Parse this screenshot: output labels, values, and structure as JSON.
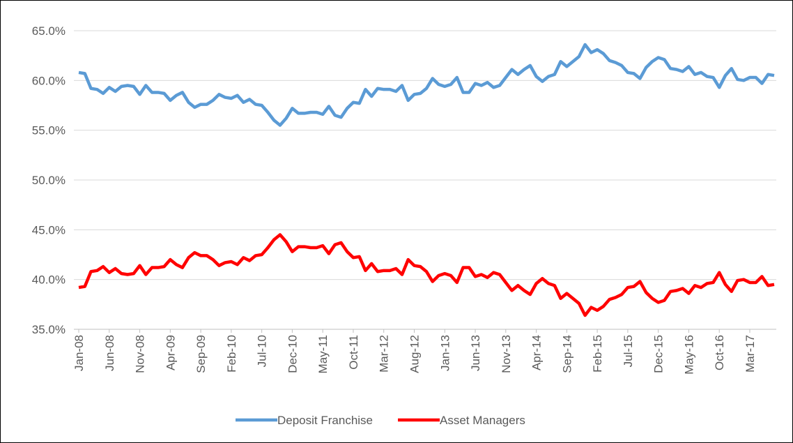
{
  "chart_data": {
    "type": "line",
    "categories": [
      "Jan-08",
      null,
      null,
      null,
      null,
      "Jun-08",
      null,
      null,
      null,
      null,
      "Nov-08",
      null,
      null,
      null,
      null,
      "Apr-09",
      null,
      null,
      null,
      null,
      "Sep-09",
      null,
      null,
      null,
      null,
      "Feb-10",
      null,
      null,
      null,
      null,
      "Jul-10",
      null,
      null,
      null,
      null,
      "Dec-10",
      null,
      null,
      null,
      null,
      "May-11",
      null,
      null,
      null,
      null,
      "Oct-11",
      null,
      null,
      null,
      null,
      "Mar-12",
      null,
      null,
      null,
      null,
      "Aug-12",
      null,
      null,
      null,
      null,
      "Jan-13",
      null,
      null,
      null,
      null,
      "Jun-13",
      null,
      null,
      null,
      null,
      "Nov-13",
      null,
      null,
      null,
      null,
      "Apr-14",
      null,
      null,
      null,
      null,
      "Sep-14",
      null,
      null,
      null,
      null,
      "Feb-15",
      null,
      null,
      null,
      null,
      "Jul-15",
      null,
      null,
      null,
      null,
      "Dec-15",
      null,
      null,
      null,
      null,
      "May-16",
      null,
      null,
      null,
      null,
      "Oct-16",
      null,
      null,
      null,
      null,
      "Mar-17",
      null,
      null,
      null,
      null
    ],
    "series": [
      {
        "name": "Deposit Franchise",
        "color": "#5b9bd5",
        "values": [
          60.8,
          60.7,
          59.2,
          59.1,
          58.7,
          59.3,
          58.9,
          59.4,
          59.5,
          59.4,
          58.6,
          59.5,
          58.8,
          58.8,
          58.7,
          58.0,
          58.5,
          58.8,
          57.8,
          57.3,
          57.6,
          57.6,
          58.0,
          58.6,
          58.3,
          58.2,
          58.5,
          57.8,
          58.1,
          57.6,
          57.5,
          56.8,
          56.0,
          55.5,
          56.2,
          57.2,
          56.7,
          56.7,
          56.8,
          56.8,
          56.6,
          57.4,
          56.5,
          56.3,
          57.2,
          57.8,
          57.7,
          59.1,
          58.4,
          59.2,
          59.1,
          59.1,
          58.9,
          59.5,
          58.0,
          58.6,
          58.7,
          59.2,
          60.2,
          59.6,
          59.4,
          59.6,
          60.3,
          58.8,
          58.8,
          59.7,
          59.5,
          59.8,
          59.3,
          59.5,
          60.3,
          61.1,
          60.6,
          61.1,
          61.5,
          60.4,
          59.9,
          60.4,
          60.6,
          61.9,
          61.4,
          61.9,
          62.4,
          63.6,
          62.8,
          63.1,
          62.7,
          62.0,
          61.8,
          61.5,
          60.8,
          60.7,
          60.2,
          61.3,
          61.9,
          62.3,
          62.1,
          61.2,
          61.1,
          60.9,
          61.4,
          60.6,
          60.8,
          60.4,
          60.3,
          59.3,
          60.5,
          61.2,
          60.1,
          60.0,
          60.3,
          60.3,
          59.7,
          60.6,
          60.5
        ]
      },
      {
        "name": "Asset Managers",
        "color": "#ff0000",
        "values": [
          39.2,
          39.3,
          40.8,
          40.9,
          41.3,
          40.7,
          41.1,
          40.6,
          40.5,
          40.6,
          41.4,
          40.5,
          41.2,
          41.2,
          41.3,
          42.0,
          41.5,
          41.2,
          42.2,
          42.7,
          42.4,
          42.4,
          42.0,
          41.4,
          41.7,
          41.8,
          41.5,
          42.2,
          41.9,
          42.4,
          42.5,
          43.2,
          44.0,
          44.5,
          43.8,
          42.8,
          43.3,
          43.3,
          43.2,
          43.2,
          43.4,
          42.6,
          43.5,
          43.7,
          42.8,
          42.2,
          42.3,
          40.9,
          41.6,
          40.8,
          40.9,
          40.9,
          41.1,
          40.5,
          42.0,
          41.4,
          41.3,
          40.8,
          39.8,
          40.4,
          40.6,
          40.4,
          39.7,
          41.2,
          41.2,
          40.3,
          40.5,
          40.2,
          40.7,
          40.5,
          39.7,
          38.9,
          39.4,
          38.9,
          38.5,
          39.6,
          40.1,
          39.6,
          39.4,
          38.1,
          38.6,
          38.1,
          37.6,
          36.4,
          37.2,
          36.9,
          37.3,
          38.0,
          38.2,
          38.5,
          39.2,
          39.3,
          39.8,
          38.7,
          38.1,
          37.7,
          37.9,
          38.8,
          38.9,
          39.1,
          38.6,
          39.4,
          39.2,
          39.6,
          39.7,
          40.7,
          39.5,
          38.8,
          39.9,
          40.0,
          39.7,
          39.7,
          40.3,
          39.4,
          39.5
        ]
      }
    ],
    "ylim": [
      35,
      65
    ],
    "yticks": [
      {
        "value": 35,
        "label": "35.0%"
      },
      {
        "value": 40,
        "label": "40.0%"
      },
      {
        "value": 45,
        "label": "45.0%"
      },
      {
        "value": 50,
        "label": "50.0%"
      },
      {
        "value": 55,
        "label": "55.0%"
      },
      {
        "value": 60,
        "label": "60.0%"
      },
      {
        "value": 65,
        "label": "65.0%"
      }
    ],
    "grid": true,
    "legend": "bottom"
  }
}
